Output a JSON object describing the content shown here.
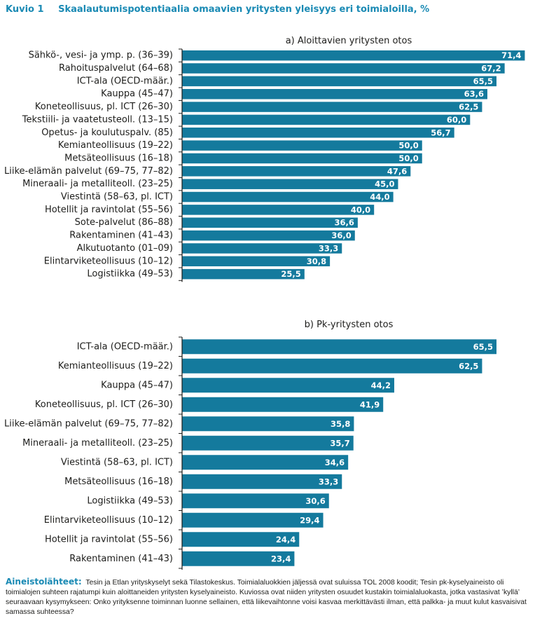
{
  "header": {
    "figure_label": "Kuvio 1",
    "title": "Skaalautumispotentiaalia omaavien yritysten yleisyys eri toimialoilla, %"
  },
  "colors": {
    "bar": "#147a9d",
    "heading_accent": "#1a8ab4",
    "text": "#1d1d1b",
    "value_label": "#ffffff"
  },
  "chart_data": [
    {
      "type": "bar",
      "orientation": "horizontal",
      "title": "a) Aloittavien yritysten otos",
      "xlabel": "",
      "ylabel": "",
      "categories": [
        "Sähkö-, vesi- ja ymp. p. (36–39)",
        "Rahoituspalvelut (64–68)",
        "ICT-ala (OECD-määr.)",
        "Kauppa (45–47)",
        "Koneteollisuus, pl. ICT (26–30)",
        "Tekstiili- ja vaatetusteoll. (13–15)",
        "Opetus- ja koulutuspalv. (85)",
        "Kemianteollisuus (19–22)",
        "Metsäteollisuus (16–18)",
        "Liike-elämän palvelut (69–75, 77–82)",
        "Mineraali- ja metalliteoll. (23–25)",
        "Viestintä (58–63, pl. ICT)",
        "Hotellit ja ravintolat (55–56)",
        "Sote-palvelut (86–88)",
        "Rakentaminen (41–43)",
        "Alkutuotanto (01–09)",
        "Elintarviketeollisuus (10–12)",
        "Logistiikka (49–53)"
      ],
      "values": [
        71.4,
        67.2,
        65.5,
        63.6,
        62.5,
        60.0,
        56.7,
        50.0,
        50.0,
        47.6,
        45.0,
        44.0,
        40.0,
        36.6,
        36.0,
        33.3,
        30.8,
        25.5
      ],
      "value_labels": [
        "71,4",
        "67,2",
        "65,5",
        "63,6",
        "62,5",
        "60,0",
        "56,7",
        "50,0",
        "50,0",
        "47,6",
        "45,0",
        "44,0",
        "40,0",
        "36,6",
        "36,0",
        "33,3",
        "30,8",
        "25,5"
      ],
      "xlim": [
        0,
        72.5
      ],
      "grid": false,
      "legend": "none"
    },
    {
      "type": "bar",
      "orientation": "horizontal",
      "title": "b) Pk-yritysten otos",
      "xlabel": "",
      "ylabel": "",
      "categories": [
        "ICT-ala (OECD-määr.)",
        "Kemianteollisuus (19–22)",
        "Kauppa (45–47)",
        "Koneteollisuus, pl. ICT (26–30)",
        "Liike-elämän palvelut (69–75, 77–82)",
        "Mineraali- ja metalliteoll. (23–25)",
        "Viestintä (58–63, pl. ICT)",
        "Metsäteollisuus (16–18)",
        "Logistiikka (49–53)",
        "Elintarviketeollisuus (10–12)",
        "Hotellit ja ravintolat (55–56)",
        "Rakentaminen (41–43)"
      ],
      "values": [
        65.5,
        62.5,
        44.2,
        41.9,
        35.8,
        35.7,
        34.6,
        33.3,
        30.6,
        29.4,
        24.4,
        23.4
      ],
      "value_labels": [
        "65,5",
        "62,5",
        "44,2",
        "41,9",
        "35,8",
        "35,7",
        "34,6",
        "33,3",
        "30,6",
        "29,4",
        "24,4",
        "23,4"
      ],
      "xlim": [
        0,
        72.5
      ],
      "grid": false,
      "legend": "none"
    }
  ],
  "source": {
    "label": "Aineistolähteet:",
    "text": "Tesin ja Etlan yrityskyselyt sekä Tilastokeskus. Toimialaluokkien jäljessä ovat suluissa TOL 2008 koodit; Tesin pk-kyselyaineisto oli toimialojen suhteen rajatumpi kuin aloittaneiden yritysten kyselyaineisto. Kuviossa ovat niiden yritysten osuudet kustakin toimialaluokasta, jotka vastasivat ’kyllä’ seuraavaan kysymykseen: Onko yrityksenne toiminnan luonne sellainen, että liikevaihtonne voisi kasvaa merkittävästi ilman, että palkka- ja muut kulut kasvaisivat samassa suhteessa?"
  }
}
